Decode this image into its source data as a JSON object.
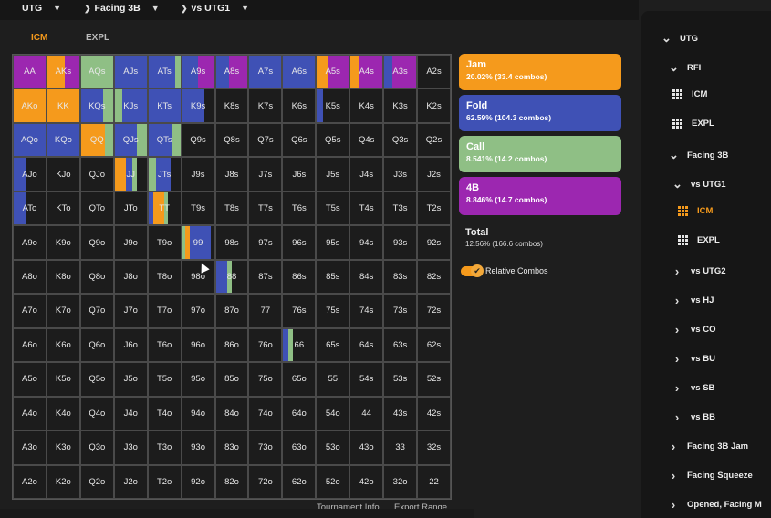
{
  "breadcrumbs": [
    {
      "label": "UTG"
    },
    {
      "label": "Facing 3B"
    },
    {
      "label": "vs UTG1"
    }
  ],
  "tabs": [
    {
      "label": "ICM",
      "active": true
    },
    {
      "label": "EXPL",
      "active": false
    }
  ],
  "colors": {
    "jam": "#f59a1c",
    "fold": "#3f51b5",
    "call": "#8fbf85",
    "fourbet": "#9c27b0",
    "accent": "#f59a1c"
  },
  "actions": [
    {
      "key": "jam",
      "title": "Jam",
      "detail": "20.02% (33.4 combos)",
      "color": "#f59a1c"
    },
    {
      "key": "fold",
      "title": "Fold",
      "detail": "62.59% (104.3 combos)",
      "color": "#3f51b5"
    },
    {
      "key": "call",
      "title": "Call",
      "detail": "8.541% (14.2 combos)",
      "color": "#8fbf85"
    },
    {
      "key": "fourbet",
      "title": "4B",
      "detail": "8.846% (14.7 combos)",
      "color": "#9c27b0"
    }
  ],
  "total": {
    "title": "Total",
    "detail": "12.56% (166.6 combos)"
  },
  "toggle": {
    "label": "Relative Combos",
    "on": true
  },
  "footer": {
    "tournament_info": "Tournament Info",
    "export_range": "Export Range"
  },
  "sidebar": [
    {
      "label": "UTG",
      "icon": "chevron-down-icon",
      "level": 0
    },
    {
      "label": "RFI",
      "icon": "chevron-down-icon",
      "level": 1
    },
    {
      "label": "ICM",
      "icon": "grid-icon",
      "level": 2
    },
    {
      "label": "EXPL",
      "icon": "grid-icon",
      "level": 2
    },
    {
      "label": "Facing 3B",
      "icon": "chevron-down-icon",
      "level": 1
    },
    {
      "label": "vs UTG1",
      "icon": "chevron-down-icon",
      "level": 2
    },
    {
      "label": "ICM",
      "icon": "grid-icon",
      "level": 3,
      "active": true
    },
    {
      "label": "EXPL",
      "icon": "grid-icon",
      "level": 3
    },
    {
      "label": "vs UTG2",
      "icon": "chevron-right-icon",
      "level": 2
    },
    {
      "label": "vs HJ",
      "icon": "chevron-right-icon",
      "level": 2
    },
    {
      "label": "vs CO",
      "icon": "chevron-right-icon",
      "level": 2
    },
    {
      "label": "vs BU",
      "icon": "chevron-right-icon",
      "level": 2
    },
    {
      "label": "vs SB",
      "icon": "chevron-right-icon",
      "level": 2
    },
    {
      "label": "vs BB",
      "icon": "chevron-right-icon",
      "level": 2
    },
    {
      "label": "Facing 3B Jam",
      "icon": "chevron-right-icon",
      "level": 1
    },
    {
      "label": "Facing Squeeze",
      "icon": "chevron-right-icon",
      "level": 1
    },
    {
      "label": "Opened, Facing M",
      "icon": "chevron-right-icon",
      "level": 1
    }
  ],
  "hand_grid": [
    [
      "AA",
      "AKs",
      "AQs",
      "AJs",
      "ATs",
      "A9s",
      "A8s",
      "A7s",
      "A6s",
      "A5s",
      "A4s",
      "A3s",
      "A2s"
    ],
    [
      "AKo",
      "KK",
      "KQs",
      "KJs",
      "KTs",
      "K9s",
      "K8s",
      "K7s",
      "K6s",
      "K5s",
      "K4s",
      "K3s",
      "K2s"
    ],
    [
      "AQo",
      "KQo",
      "QQ",
      "QJs",
      "QTs",
      "Q9s",
      "Q8s",
      "Q7s",
      "Q6s",
      "Q5s",
      "Q4s",
      "Q3s",
      "Q2s"
    ],
    [
      "AJo",
      "KJo",
      "QJo",
      "JJ",
      "JTs",
      "J9s",
      "J8s",
      "J7s",
      "J6s",
      "J5s",
      "J4s",
      "J3s",
      "J2s"
    ],
    [
      "ATo",
      "KTo",
      "QTo",
      "JTo",
      "TT",
      "T9s",
      "T8s",
      "T7s",
      "T6s",
      "T5s",
      "T4s",
      "T3s",
      "T2s"
    ],
    [
      "A9o",
      "K9o",
      "Q9o",
      "J9o",
      "T9o",
      "99",
      "98s",
      "97s",
      "96s",
      "95s",
      "94s",
      "93s",
      "92s"
    ],
    [
      "A8o",
      "K8o",
      "Q8o",
      "J8o",
      "T8o",
      "98o",
      "88",
      "87s",
      "86s",
      "85s",
      "84s",
      "83s",
      "82s"
    ],
    [
      "A7o",
      "K7o",
      "Q7o",
      "J7o",
      "T7o",
      "97o",
      "87o",
      "77",
      "76s",
      "75s",
      "74s",
      "73s",
      "72s"
    ],
    [
      "A6o",
      "K6o",
      "Q6o",
      "J6o",
      "T6o",
      "96o",
      "86o",
      "76o",
      "66",
      "65s",
      "64s",
      "63s",
      "62s"
    ],
    [
      "A5o",
      "K5o",
      "Q5o",
      "J5o",
      "T5o",
      "95o",
      "85o",
      "75o",
      "65o",
      "55",
      "54s",
      "53s",
      "52s"
    ],
    [
      "A4o",
      "K4o",
      "Q4o",
      "J4o",
      "T4o",
      "94o",
      "84o",
      "74o",
      "64o",
      "54o",
      "44",
      "43s",
      "42s"
    ],
    [
      "A3o",
      "K3o",
      "Q3o",
      "J3o",
      "T3o",
      "93o",
      "83o",
      "73o",
      "63o",
      "53o",
      "43o",
      "33",
      "32s"
    ],
    [
      "A2o",
      "K2o",
      "Q2o",
      "J2o",
      "T2o",
      "92o",
      "82o",
      "72o",
      "62o",
      "52o",
      "42o",
      "32o",
      "22"
    ]
  ],
  "strategy": {
    "AA": [
      [
        "fourbet",
        1.0
      ]
    ],
    "AKs": [
      [
        "jam",
        0.55
      ],
      [
        "fourbet",
        0.45
      ]
    ],
    "AQs": [
      [
        "call",
        1.0
      ]
    ],
    "AJs": [
      [
        "fold",
        1.0
      ]
    ],
    "ATs": [
      [
        "fold",
        0.85
      ],
      [
        "call",
        0.15
      ]
    ],
    "A9s": [
      [
        "fold",
        0.5
      ],
      [
        "fourbet",
        0.5
      ]
    ],
    "A8s": [
      [
        "fold",
        0.4
      ],
      [
        "fourbet",
        0.6
      ]
    ],
    "A7s": [
      [
        "fold",
        1.0
      ]
    ],
    "A6s": [
      [
        "fold",
        1.0
      ]
    ],
    "A5s": [
      [
        "jam",
        0.35
      ],
      [
        "fourbet",
        0.65
      ]
    ],
    "A4s": [
      [
        "jam",
        0.25
      ],
      [
        "fourbet",
        0.75
      ]
    ],
    "A3s": [
      [
        "fold",
        0.25
      ],
      [
        "fourbet",
        0.75
      ]
    ],
    "AKo": [
      [
        "jam",
        1.0
      ]
    ],
    "KK": [
      [
        "jam",
        1.0
      ]
    ],
    "KQs": [
      [
        "fold",
        0.7
      ],
      [
        "call",
        0.3
      ]
    ],
    "KJs": [
      [
        "call",
        0.25
      ],
      [
        "fold",
        0.75
      ]
    ],
    "KTs": [
      [
        "fold",
        1.0
      ]
    ],
    "K9s": [
      [
        "fold",
        0.7
      ]
    ],
    "K5s": [
      [
        "fold",
        0.2
      ]
    ],
    "AQo": [
      [
        "fold",
        1.0
      ]
    ],
    "KQo": [
      [
        "fold",
        1.0
      ]
    ],
    "QQ": [
      [
        "jam",
        0.75
      ],
      [
        "call",
        0.25
      ]
    ],
    "QJs": [
      [
        "fold",
        0.7
      ],
      [
        "call",
        0.3
      ]
    ],
    "QTs": [
      [
        "fold",
        0.75
      ],
      [
        "call",
        0.25
      ]
    ],
    "AJo": [
      [
        "fold",
        0.4
      ]
    ],
    "JJ": [
      [
        "jam",
        0.35
      ],
      [
        "fold",
        0.2
      ],
      [
        "call",
        0.15
      ]
    ],
    "JTs": [
      [
        "call",
        0.25
      ],
      [
        "fold",
        0.45
      ]
    ],
    "ATo": [
      [
        "fold",
        0.4
      ]
    ],
    "TT": [
      [
        "fold",
        0.15
      ],
      [
        "jam",
        0.35
      ],
      [
        "call",
        0.1
      ]
    ],
    "99": [
      [
        "call",
        0.1
      ],
      [
        "jam",
        0.15
      ],
      [
        "fold",
        0.65
      ]
    ],
    "88": [
      [
        "fold",
        0.35
      ],
      [
        "call",
        0.15
      ]
    ],
    "66": [
      [
        "fold",
        0.15
      ],
      [
        "call",
        0.15
      ]
    ]
  }
}
